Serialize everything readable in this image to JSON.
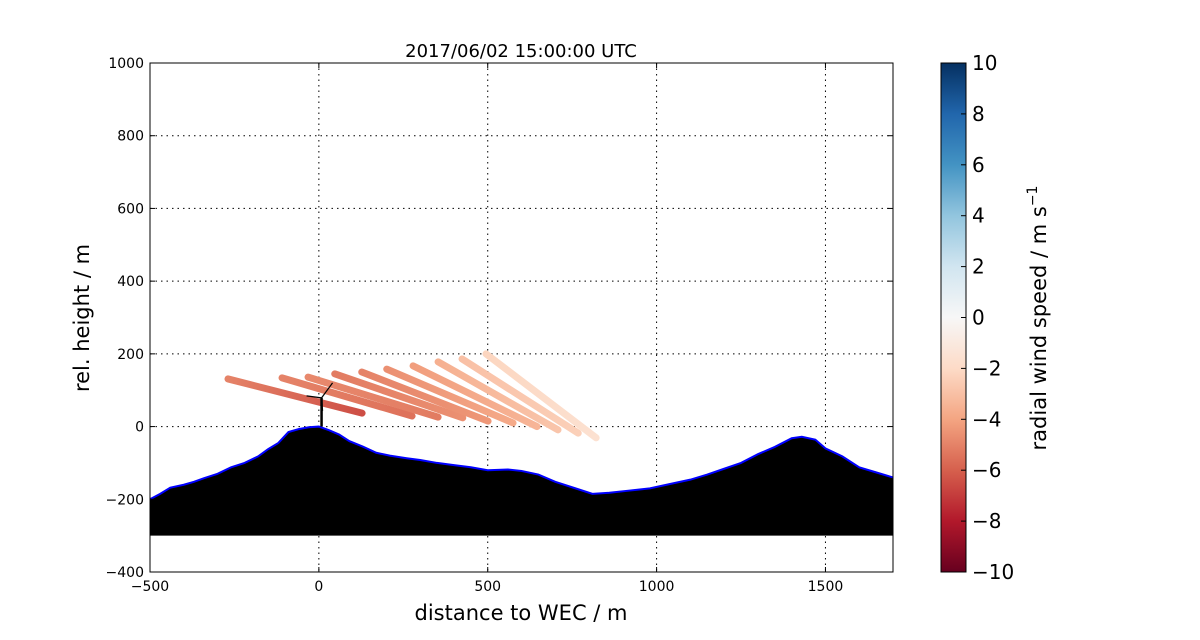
{
  "chart_data": {
    "type": "line",
    "title": "2017/06/02 15:00:00 UTC",
    "xlabel": "distance to WEC / m",
    "ylabel": "rel. height / m",
    "xlim": [
      -500,
      1700
    ],
    "ylim": [
      -400,
      1000
    ],
    "xticks": [
      -500,
      0,
      500,
      1000,
      1500
    ],
    "yticks": [
      -400,
      -200,
      0,
      200,
      400,
      600,
      800,
      1000
    ],
    "grid": true,
    "terrain": {
      "fill_color": "#000000",
      "edge_color": "#0000ff",
      "base": -300,
      "x": [
        -500,
        -470,
        -440,
        -400,
        -370,
        -340,
        -300,
        -260,
        -220,
        -180,
        -150,
        -120,
        -90,
        -60,
        -30,
        0,
        30,
        60,
        90,
        130,
        170,
        210,
        260,
        300,
        350,
        400,
        450,
        500,
        560,
        600,
        650,
        700,
        760,
        810,
        860,
        920,
        980,
        1050,
        1100,
        1150,
        1200,
        1250,
        1300,
        1350,
        1400,
        1430,
        1470,
        1500,
        1550,
        1600,
        1650,
        1700
      ],
      "y": [
        -200,
        -185,
        -168,
        -160,
        -152,
        -142,
        -130,
        -112,
        -100,
        -82,
        -62,
        -45,
        -15,
        -7,
        -2,
        0,
        -10,
        -22,
        -40,
        -55,
        -72,
        -80,
        -87,
        -92,
        -100,
        -106,
        -112,
        -120,
        -118,
        -122,
        -132,
        -152,
        -170,
        -185,
        -182,
        -176,
        -170,
        -156,
        -146,
        -132,
        -116,
        -100,
        -76,
        -56,
        -32,
        -28,
        -36,
        -60,
        -82,
        -112,
        -126,
        -140
      ]
    },
    "turbine": {
      "x": 8,
      "base": 0,
      "hub_height": 79
    },
    "beams": [
      {
        "x0": -269,
        "y0": 131,
        "x1": 128,
        "y1": 37,
        "v0": -5.0,
        "v1": -6.5
      },
      {
        "x0": -109,
        "y0": 134,
        "x1": 276,
        "y1": 29,
        "v0": -5.0,
        "v1": -5.5
      },
      {
        "x0": -32,
        "y0": 136,
        "x1": 353,
        "y1": 26,
        "v0": -4.8,
        "v1": -5.2
      },
      {
        "x0": 47,
        "y0": 145,
        "x1": 426,
        "y1": 24,
        "v0": -5.2,
        "v1": -4.6
      },
      {
        "x0": 127,
        "y0": 150,
        "x1": 501,
        "y1": 15,
        "v0": -5.0,
        "v1": -4.4
      },
      {
        "x0": 201,
        "y0": 158,
        "x1": 575,
        "y1": 10,
        "v0": -4.6,
        "v1": -3.8
      },
      {
        "x0": 279,
        "y0": 167,
        "x1": 646,
        "y1": 0,
        "v0": -4.2,
        "v1": -3.4
      },
      {
        "x0": 353,
        "y0": 178,
        "x1": 708,
        "y1": -9,
        "v0": -3.6,
        "v1": -2.8
      },
      {
        "x0": 424,
        "y0": 186,
        "x1": 768,
        "y1": -18,
        "v0": -3.0,
        "v1": -2.4
      },
      {
        "x0": 495,
        "y0": 200,
        "x1": 821,
        "y1": -31,
        "v0": -2.2,
        "v1": -1.6
      }
    ],
    "colorbar": {
      "label": "radial wind speed / m s",
      "label_superscript": "−1",
      "range": [
        -10,
        10
      ],
      "ticks": [
        -10,
        -8,
        -6,
        -4,
        -2,
        0,
        2,
        4,
        6,
        8,
        10
      ],
      "tick_labels": [
        "−10",
        "−8",
        "−6",
        "−4",
        "−2",
        "0",
        "2",
        "4",
        "6",
        "8",
        "10"
      ],
      "colormap": "RdBu",
      "colors": [
        "#67001f",
        "#b2182b",
        "#d6604d",
        "#f4a582",
        "#fddbc7",
        "#f7f7f7",
        "#d1e5f0",
        "#92c5de",
        "#4393c3",
        "#2166ac",
        "#053061"
      ]
    }
  }
}
